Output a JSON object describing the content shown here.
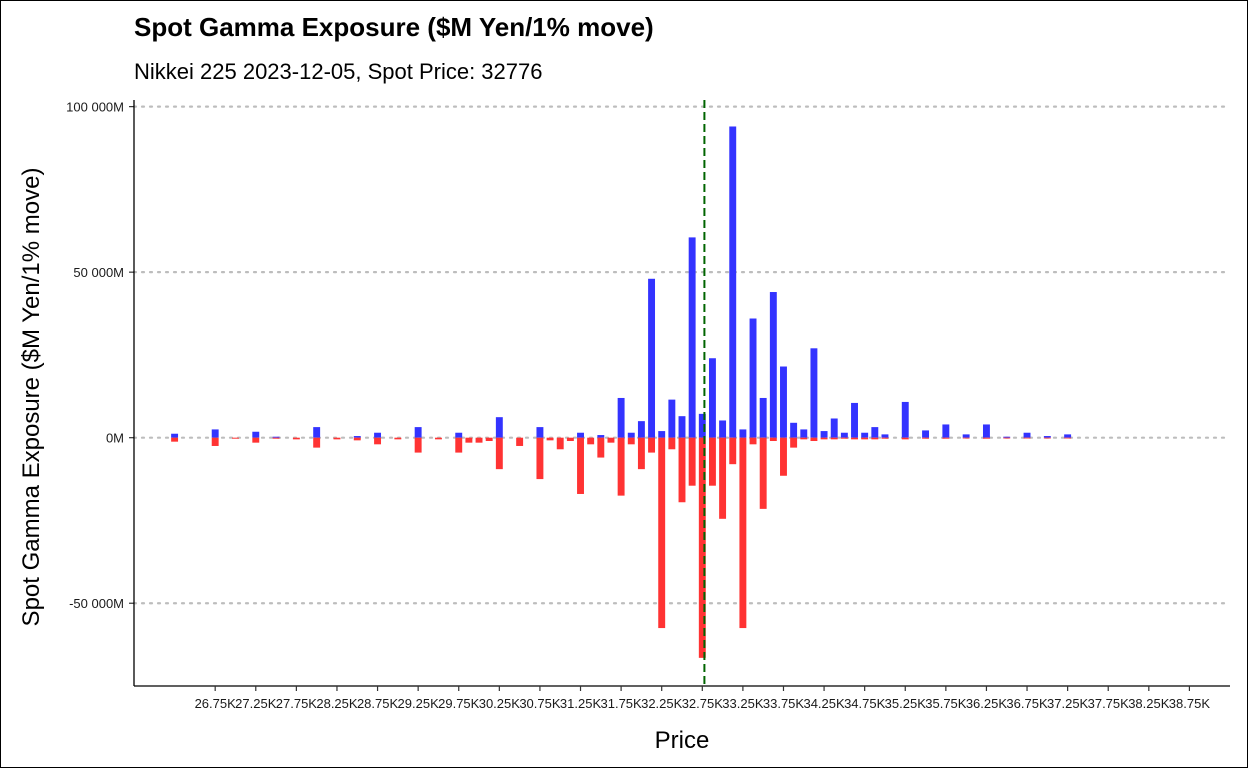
{
  "chart_data": {
    "type": "bar",
    "title": "Spot Gamma Exposure ($M Yen/1% move)",
    "subtitle": "Nikkei 225 2023-12-05, Spot Price: 32776",
    "xlabel": "Price",
    "ylabel": "Spot Gamma Exposure ($M Yen/1% move)",
    "xlim": [
      25750,
      39250
    ],
    "ylim": [
      -75000,
      102000
    ],
    "spot_price": 32776,
    "y_ticks": [
      {
        "value": 100000,
        "label": "100 000M"
      },
      {
        "value": 50000,
        "label": "50 000M"
      },
      {
        "value": 0,
        "label": "0M"
      },
      {
        "value": -50000,
        "label": "-50 000M"
      }
    ],
    "x_ticks": [
      {
        "value": 26750,
        "label": "26.75K"
      },
      {
        "value": 27250,
        "label": "27.25K"
      },
      {
        "value": 27750,
        "label": "27.75K"
      },
      {
        "value": 28250,
        "label": "28.25K"
      },
      {
        "value": 28750,
        "label": "28.75K"
      },
      {
        "value": 29250,
        "label": "29.25K"
      },
      {
        "value": 29750,
        "label": "29.75K"
      },
      {
        "value": 30250,
        "label": "30.25K"
      },
      {
        "value": 30750,
        "label": "30.75K"
      },
      {
        "value": 31250,
        "label": "31.25K"
      },
      {
        "value": 31750,
        "label": "31.75K"
      },
      {
        "value": 32250,
        "label": "32.25K"
      },
      {
        "value": 32750,
        "label": "32.75K"
      },
      {
        "value": 33250,
        "label": "33.25K"
      },
      {
        "value": 33750,
        "label": "33.75K"
      },
      {
        "value": 34250,
        "label": "34.25K"
      },
      {
        "value": 34750,
        "label": "34.75K"
      },
      {
        "value": 35250,
        "label": "35.25K"
      },
      {
        "value": 35750,
        "label": "35.75K"
      },
      {
        "value": 36250,
        "label": "36.25K"
      },
      {
        "value": 36750,
        "label": "36.75K"
      },
      {
        "value": 37250,
        "label": "37.25K"
      },
      {
        "value": 37750,
        "label": "37.75K"
      },
      {
        "value": 38250,
        "label": "38.25K"
      },
      {
        "value": 38750,
        "label": "38.75K"
      }
    ],
    "bar_width": 100,
    "grid": "horizontal-dotted",
    "colors": {
      "calls": "#3333ff",
      "puts": "#ff3333",
      "spot_line": "#006400",
      "grid": "#bdbdbd"
    },
    "series": [
      {
        "x": [
          26250,
          26750,
          27000,
          27250,
          27500,
          27750,
          28000,
          28250,
          28500,
          28750,
          29000,
          29250,
          29500,
          29750,
          29875,
          30000,
          30125,
          30250,
          30500,
          30750,
          30875,
          31000,
          31125,
          31250,
          31375,
          31500,
          31625,
          31750,
          31875,
          32000,
          32125,
          32250,
          32375,
          32500,
          32625,
          32750,
          32875,
          33000,
          33125,
          33250,
          33375,
          33500,
          33625,
          33750,
          33875,
          34000,
          34125,
          34250,
          34375,
          34500,
          34625,
          34750,
          34875,
          35000,
          35250,
          35500,
          35750,
          36000,
          36250,
          36500,
          36750,
          37000,
          37250
        ],
        "values": [
          1200,
          2500,
          0,
          1800,
          300,
          0,
          3200,
          0,
          500,
          1500,
          0,
          3200,
          0,
          1500,
          0,
          0,
          0,
          6200,
          0,
          3200,
          0,
          0,
          0,
          1500,
          0,
          800,
          0,
          12000,
          1500,
          5000,
          48000,
          2000,
          11500,
          6500,
          60500,
          7200,
          24000,
          5200,
          94000,
          2500,
          36000,
          12000,
          44000,
          21500,
          4500,
          2500,
          27000,
          2000,
          5800,
          1500,
          10500,
          1500,
          3200,
          1000,
          10800,
          2200,
          4000,
          1000,
          4000,
          300,
          1500,
          500,
          1000
        ]
      },
      {
        "x": [
          26250,
          26750,
          27000,
          27250,
          27500,
          27750,
          28000,
          28250,
          28500,
          28750,
          29000,
          29250,
          29500,
          29750,
          29875,
          30000,
          30125,
          30250,
          30500,
          30750,
          30875,
          31000,
          31125,
          31250,
          31375,
          31500,
          31625,
          31750,
          31875,
          32000,
          32125,
          32250,
          32375,
          32500,
          32625,
          32750,
          32875,
          33000,
          33125,
          33250,
          33375,
          33500,
          33625,
          33750,
          33875,
          34000,
          34125,
          34250,
          34375,
          34500,
          34625,
          34750,
          34875,
          35000,
          35250,
          35500,
          35750,
          36000,
          36250,
          36500,
          36750,
          37000,
          37250
        ],
        "values": [
          -1200,
          -2500,
          -300,
          -1500,
          -300,
          -500,
          -3000,
          -500,
          -800,
          -2000,
          -500,
          -4500,
          -500,
          -4500,
          -1500,
          -1500,
          -1000,
          -9500,
          -2500,
          -12500,
          -800,
          -3500,
          -1000,
          -17000,
          -2000,
          -6000,
          -1500,
          -17500,
          -2000,
          -9500,
          -4500,
          -57500,
          -3500,
          -19500,
          -14500,
          -66500,
          -14500,
          -24500,
          -8000,
          -57500,
          -2000,
          -21500,
          -1000,
          -11500,
          -3000,
          -500,
          -1000,
          -500,
          -500,
          -300,
          -500,
          -500,
          -500,
          -300,
          -500,
          -300,
          -300,
          -200,
          -300,
          -100,
          -200,
          -100,
          -200
        ]
      }
    ]
  }
}
